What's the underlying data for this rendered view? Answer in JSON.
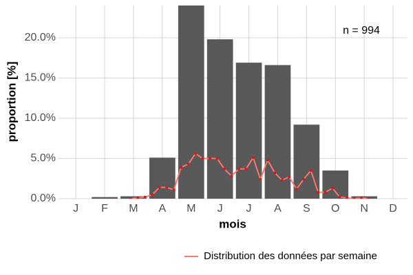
{
  "chart_data": {
    "type": "bar",
    "categories": [
      "J",
      "F",
      "M",
      "A",
      "M",
      "J",
      "J",
      "A",
      "S",
      "O",
      "N",
      "D"
    ],
    "values": [
      0,
      0.2,
      0.3,
      5.1,
      24.3,
      19.8,
      16.9,
      16.6,
      9.2,
      3.5,
      0.3,
      0
    ],
    "color": "#595959",
    "x_label": "mois",
    "y_label": "proportion [%]",
    "annotation": "n = 994",
    "xlim": [
      0.4,
      12.5
    ],
    "ylim": [
      0,
      24
    ],
    "yticks": [
      {
        "value": 0,
        "label": "0.0%"
      },
      {
        "value": 5,
        "label": "5.0%"
      },
      {
        "value": 10,
        "label": "10.0%"
      },
      {
        "value": 15,
        "label": "15.0%"
      },
      {
        "value": 20,
        "label": "20.0%"
      }
    ],
    "grid": true,
    "legend": "bottom-right",
    "series": [
      {
        "name": "Distribution des données par semaine",
        "color": "#f8766d",
        "point_color": "#d7191c",
        "x": [
          2.9,
          3.15,
          3.4,
          3.65,
          3.9,
          4.15,
          4.4,
          4.65,
          4.9,
          5.15,
          5.4,
          5.65,
          5.9,
          6.15,
          6.4,
          6.65,
          6.9,
          7.15,
          7.4,
          7.65,
          7.9,
          8.15,
          8.4,
          8.65,
          8.9,
          9.15,
          9.4,
          9.65,
          9.9,
          10.15,
          10.4,
          10.65,
          10.9,
          11.15
        ],
        "values": [
          0,
          0.1,
          0.2,
          0.5,
          1.4,
          1.4,
          1.1,
          3.9,
          4.3,
          5.6,
          5.0,
          5.0,
          5.0,
          3.7,
          2.8,
          3.7,
          3.7,
          5.1,
          2.4,
          4.8,
          3.2,
          2.3,
          2.7,
          1.2,
          2.4,
          3.5,
          0.8,
          0.8,
          1.3,
          0.2,
          0.1,
          0,
          0.1,
          0
        ]
      }
    ]
  }
}
